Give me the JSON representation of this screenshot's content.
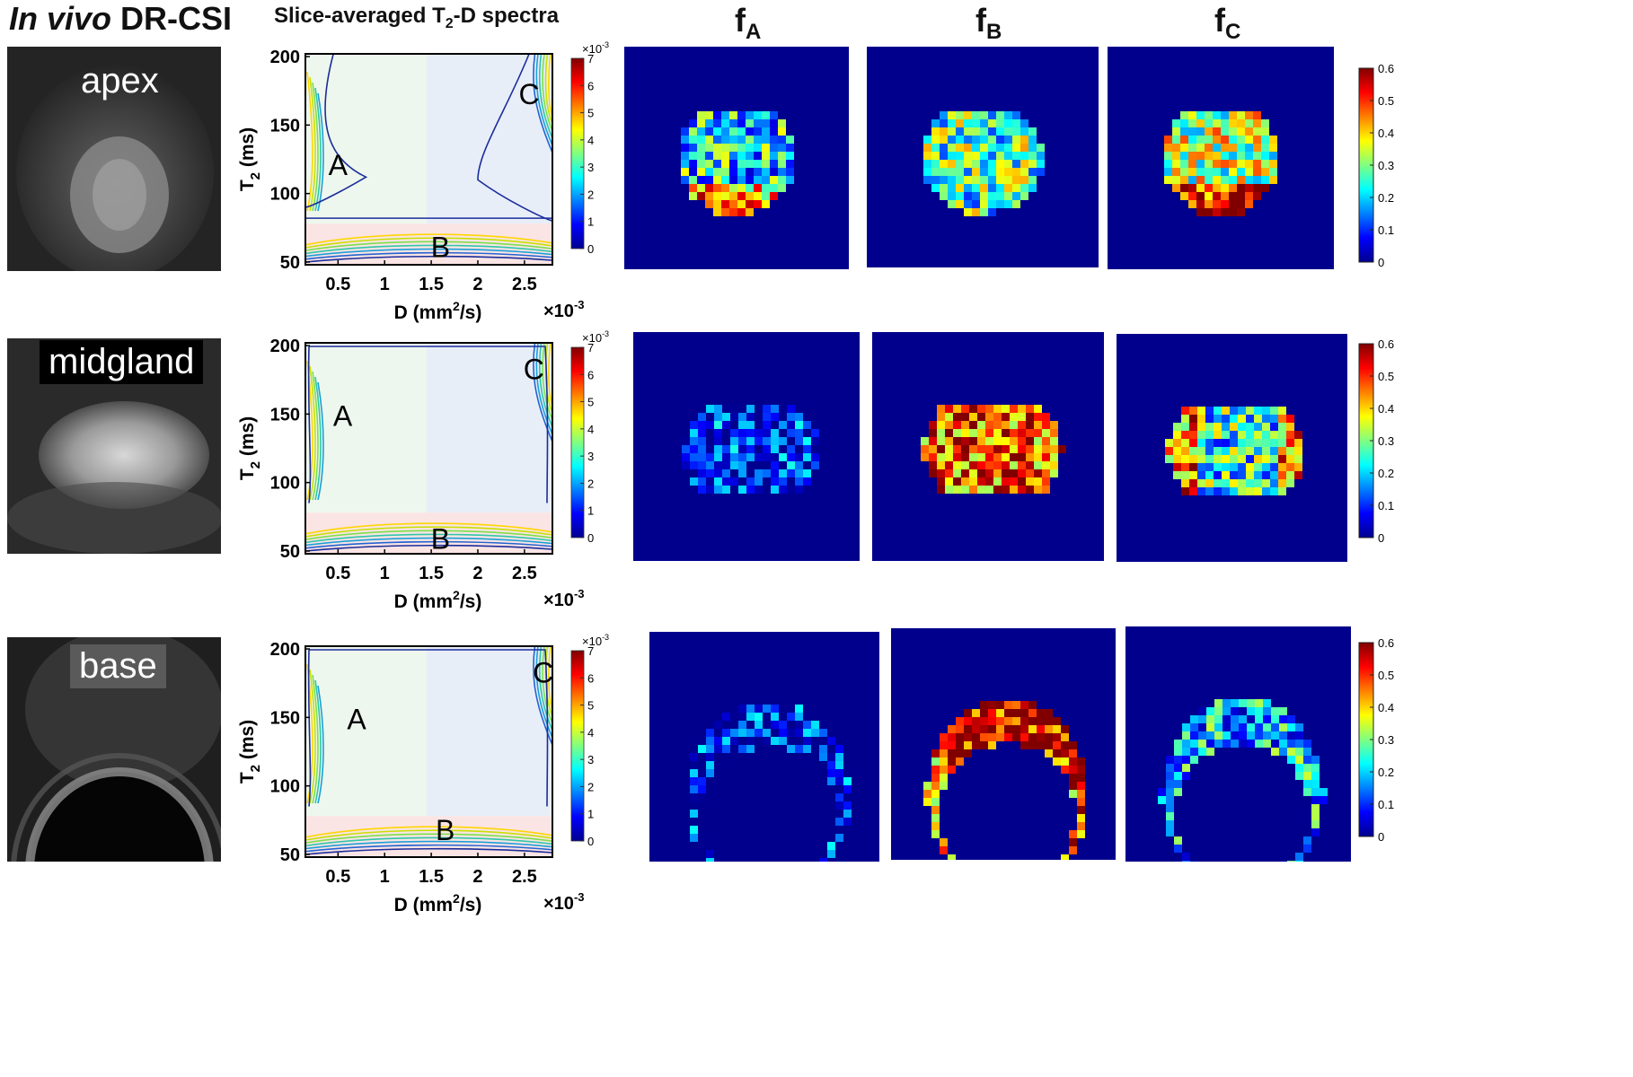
{
  "header": {
    "title_italic": "In vivo",
    "title_rest": " DR-CSI",
    "spectra_title_pre": "Slice-averaged T",
    "spectra_title_sub": "2",
    "spectra_title_post": "-D spectra",
    "maps": [
      {
        "base": "f",
        "sub": "A"
      },
      {
        "base": "f",
        "sub": "B"
      },
      {
        "base": "f",
        "sub": "C"
      }
    ]
  },
  "rows": [
    {
      "name": "apex",
      "regions": {
        "A": [
          0.5,
          120
        ],
        "B": [
          1.6,
          60
        ],
        "C": [
          2.55,
          172
        ]
      },
      "contour_colors": [
        "#ffd600",
        "#c8e000",
        "#7ce04a",
        "#2ec7a8",
        "#1ba0d8",
        "#2264d2",
        "#1b2d9a"
      ]
    },
    {
      "name": "midgland",
      "regions": {
        "A": [
          0.55,
          148
        ],
        "B": [
          1.6,
          58
        ],
        "C": [
          2.6,
          182
        ]
      },
      "contour_colors": [
        "#ffd600",
        "#c8e000",
        "#7ce04a",
        "#2ec7a8",
        "#1ba0d8",
        "#2264d2",
        "#1b2d9a"
      ]
    },
    {
      "name": "base",
      "regions": {
        "A": [
          0.7,
          148
        ],
        "B": [
          1.65,
          67
        ],
        "C": [
          2.7,
          182
        ]
      },
      "contour_colors": [
        "#ffd600",
        "#c8e000",
        "#7ce04a",
        "#2ec7a8",
        "#1ba0d8",
        "#2264d2",
        "#1b2d9a"
      ]
    }
  ],
  "chart_data": {
    "type": "heatmap",
    "xlabel_pre": "D (mm",
    "xlabel_sup": "2",
    "xlabel_post": "/s)",
    "x_multiplier": "×10",
    "x_multiplier_exp": "-3",
    "ylabel_pre": "T",
    "ylabel_sub": "2",
    "ylabel_post": " (ms)",
    "xlim": [
      0.15,
      2.8
    ],
    "ylim": [
      48,
      202
    ],
    "xticks": [
      "0.5",
      "1",
      "1.5",
      "2",
      "2.5"
    ],
    "xtick_values": [
      0.5,
      1,
      1.5,
      2,
      2.5
    ],
    "yticks": [
      "200",
      "150",
      "100",
      "50"
    ],
    "ytick_values": [
      200,
      150,
      100,
      50
    ],
    "region_bounds": {
      "d_split": 1.45,
      "t2_split": 78
    },
    "region_colors": {
      "A": "#eef7ee",
      "B": "#fae4e4",
      "C": "#e8eef8"
    },
    "spectra_colorbar": {
      "multiplier": "×10",
      "multiplier_exp": "-3",
      "ticks": [
        "7",
        "6",
        "5",
        "4",
        "3",
        "2",
        "1",
        "0"
      ],
      "range": [
        0,
        7
      ]
    },
    "map_colorbar": {
      "ticks": [
        "0.6",
        "0.5",
        "0.4",
        "0.3",
        "0.2",
        "0.1",
        "0"
      ],
      "range": [
        0,
        0.6
      ]
    }
  },
  "colors": {
    "map_background": "#00008c",
    "jet": [
      "#00008f",
      "#0000ff",
      "#0080ff",
      "#00ffff",
      "#80ff80",
      "#ffff00",
      "#ff8000",
      "#ff0000",
      "#800000"
    ]
  }
}
